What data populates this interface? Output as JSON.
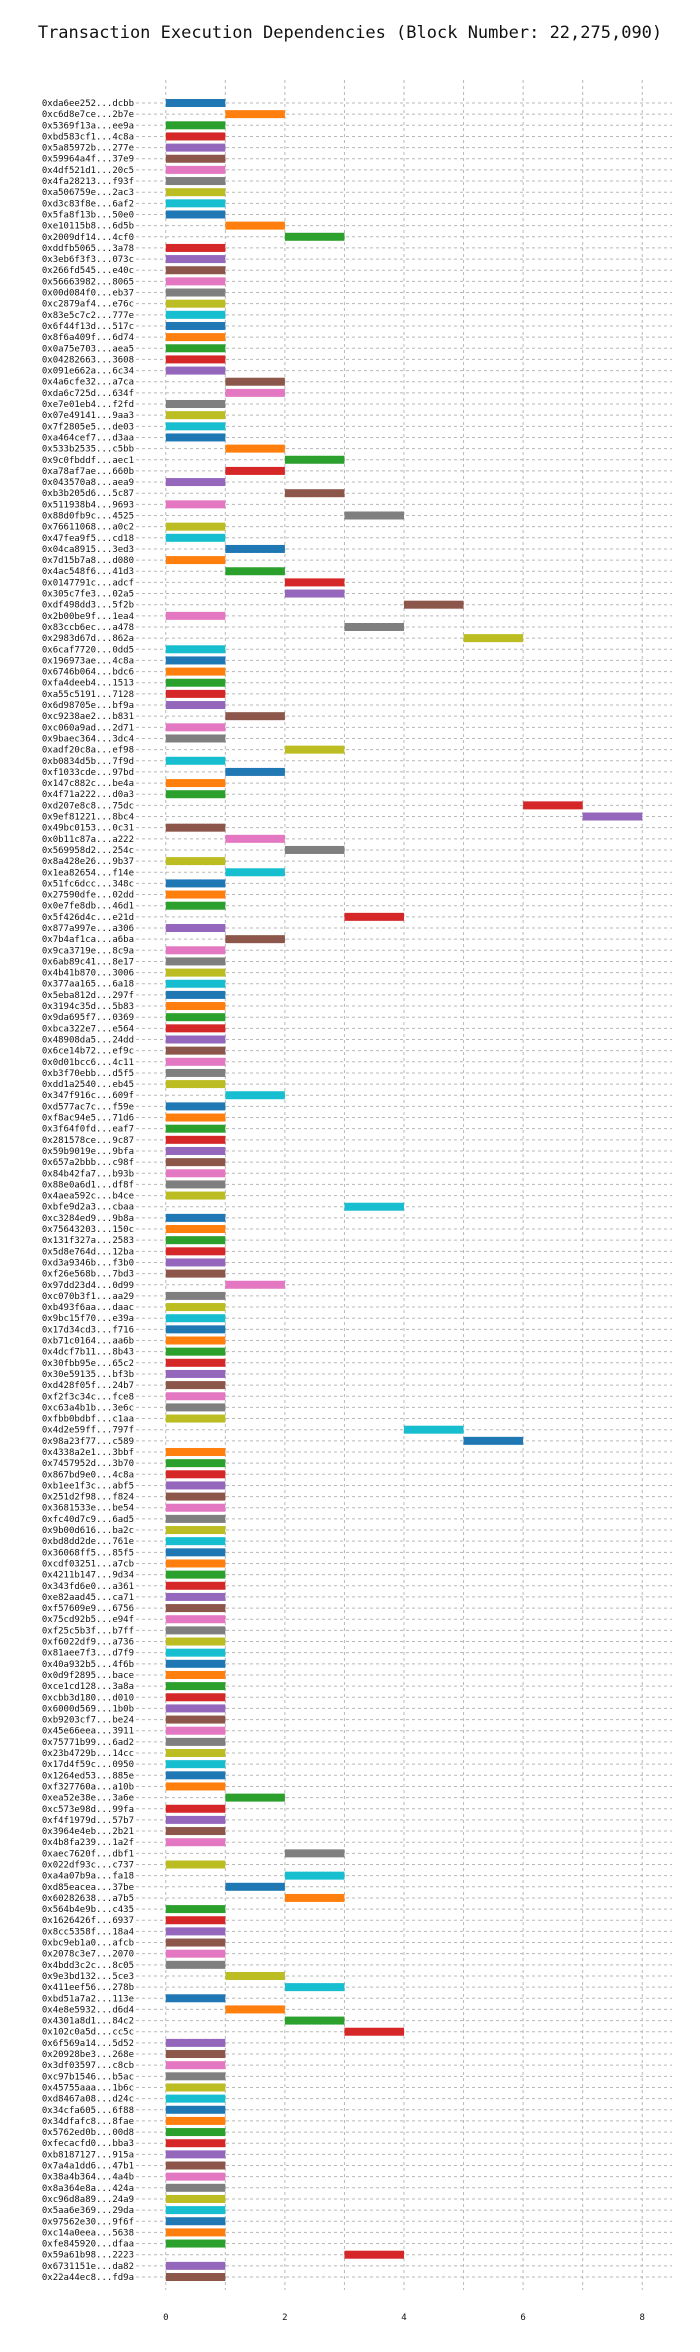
{
  "chart_data": {
    "type": "bar",
    "orientation": "horizontal",
    "title": "Transaction Execution Dependencies (Block Number: 22,275,090)",
    "xlabel": "",
    "ylabel": "",
    "xlim": [
      -0.5,
      8.5
    ],
    "x_ticks": [
      "0",
      "2",
      "4",
      "6",
      "8"
    ],
    "grid": true,
    "colors": [
      "#1f77b4",
      "#ff7f0e",
      "#2ca02c",
      "#d62728",
      "#9467bd",
      "#8c564b",
      "#e377c2",
      "#7f7f7f",
      "#bcbd22",
      "#17becf"
    ],
    "rows": [
      {
        "tx": "0xda6ee252...dcbb",
        "start": 0,
        "end": 1
      },
      {
        "tx": "0xc6d8e7ce...2b7e",
        "start": 1,
        "end": 2
      },
      {
        "tx": "0x5369f13a...ee9a",
        "start": 0,
        "end": 1
      },
      {
        "tx": "0xbd583cf1...4c8a",
        "start": 0,
        "end": 1
      },
      {
        "tx": "0x5a85972b...277e",
        "start": 0,
        "end": 1
      },
      {
        "tx": "0x59964a4f...37e9",
        "start": 0,
        "end": 1
      },
      {
        "tx": "0x4df521d1...20c5",
        "start": 0,
        "end": 1
      },
      {
        "tx": "0x4fa28213...f93f",
        "start": 0,
        "end": 1
      },
      {
        "tx": "0xa506759e...2ac3",
        "start": 0,
        "end": 1
      },
      {
        "tx": "0xd3c83f8e...6af2",
        "start": 0,
        "end": 1
      },
      {
        "tx": "0x5fa8f13b...50e0",
        "start": 0,
        "end": 1
      },
      {
        "tx": "0xe10115b8...6d5b",
        "start": 1,
        "end": 2
      },
      {
        "tx": "0x2009df14...4cf0",
        "start": 2,
        "end": 3
      },
      {
        "tx": "0xddfb5065...3a78",
        "start": 0,
        "end": 1
      },
      {
        "tx": "0x3eb6f3f3...073c",
        "start": 0,
        "end": 1
      },
      {
        "tx": "0x266fd545...e40c",
        "start": 0,
        "end": 1
      },
      {
        "tx": "0x56663982...8065",
        "start": 0,
        "end": 1
      },
      {
        "tx": "0x00d084f0...eb37",
        "start": 0,
        "end": 1
      },
      {
        "tx": "0xc2879af4...e76c",
        "start": 0,
        "end": 1
      },
      {
        "tx": "0x83e5c7c2...777e",
        "start": 0,
        "end": 1
      },
      {
        "tx": "0x6f44f13d...517c",
        "start": 0,
        "end": 1
      },
      {
        "tx": "0x8f6a409f...6d74",
        "start": 0,
        "end": 1
      },
      {
        "tx": "0x0a75e703...aea5",
        "start": 0,
        "end": 1
      },
      {
        "tx": "0x04282663...3608",
        "start": 0,
        "end": 1
      },
      {
        "tx": "0x091e662a...6c34",
        "start": 0,
        "end": 1
      },
      {
        "tx": "0x4a6cfe32...a7ca",
        "start": 1,
        "end": 2
      },
      {
        "tx": "0xda6c725d...634f",
        "start": 1,
        "end": 2
      },
      {
        "tx": "0xe7e01eb4...f2fd",
        "start": 0,
        "end": 1
      },
      {
        "tx": "0x07e49141...9aa3",
        "start": 0,
        "end": 1
      },
      {
        "tx": "0x7f2805e5...de03",
        "start": 0,
        "end": 1
      },
      {
        "tx": "0xa464cef7...d3aa",
        "start": 0,
        "end": 1
      },
      {
        "tx": "0x533b2535...c5bb",
        "start": 1,
        "end": 2
      },
      {
        "tx": "0x9c0fbddf...aec1",
        "start": 2,
        "end": 3
      },
      {
        "tx": "0xa78af7ae...660b",
        "start": 1,
        "end": 2
      },
      {
        "tx": "0x043570a8...aea9",
        "start": 0,
        "end": 1
      },
      {
        "tx": "0xb3b205d6...5c87",
        "start": 2,
        "end": 3
      },
      {
        "tx": "0x511938b4...9693",
        "start": 0,
        "end": 1
      },
      {
        "tx": "0x88d0fb9c...4525",
        "start": 3,
        "end": 4
      },
      {
        "tx": "0x76611068...a0c2",
        "start": 0,
        "end": 1
      },
      {
        "tx": "0x47fea9f5...cd18",
        "start": 0,
        "end": 1
      },
      {
        "tx": "0x04ca8915...3ed3",
        "start": 1,
        "end": 2
      },
      {
        "tx": "0x7d15b7a8...d080",
        "start": 0,
        "end": 1
      },
      {
        "tx": "0x4ac548f6...41d3",
        "start": 1,
        "end": 2
      },
      {
        "tx": "0x0147791c...adcf",
        "start": 2,
        "end": 3
      },
      {
        "tx": "0x305c7fe3...02a5",
        "start": 2,
        "end": 3
      },
      {
        "tx": "0xdf498dd3...5f2b",
        "start": 4,
        "end": 5
      },
      {
        "tx": "0x2b00be9f...1ea4",
        "start": 0,
        "end": 1
      },
      {
        "tx": "0x83ccb6ec...a478",
        "start": 3,
        "end": 4
      },
      {
        "tx": "0x2983d67d...862a",
        "start": 5,
        "end": 6
      },
      {
        "tx": "0x6caf7720...0dd5",
        "start": 0,
        "end": 1
      },
      {
        "tx": "0x196973ae...4c8a",
        "start": 0,
        "end": 1
      },
      {
        "tx": "0x6746b064...bdc6",
        "start": 0,
        "end": 1
      },
      {
        "tx": "0xfa4deeb4...1513",
        "start": 0,
        "end": 1
      },
      {
        "tx": "0xa55c5191...7128",
        "start": 0,
        "end": 1
      },
      {
        "tx": "0x6d98705e...bf9a",
        "start": 0,
        "end": 1
      },
      {
        "tx": "0xc9238ae2...b831",
        "start": 1,
        "end": 2
      },
      {
        "tx": "0xc060a9ad...2d71",
        "start": 0,
        "end": 1
      },
      {
        "tx": "0x9baec364...3dc4",
        "start": 0,
        "end": 1
      },
      {
        "tx": "0xadf20c8a...ef98",
        "start": 2,
        "end": 3
      },
      {
        "tx": "0xb0834d5b...7f9d",
        "start": 0,
        "end": 1
      },
      {
        "tx": "0xf1033cde...97bd",
        "start": 1,
        "end": 2
      },
      {
        "tx": "0x147c882c...be4a",
        "start": 0,
        "end": 1
      },
      {
        "tx": "0x4f71a222...d0a3",
        "start": 0,
        "end": 1
      },
      {
        "tx": "0xd207e8c8...75dc",
        "start": 6,
        "end": 7
      },
      {
        "tx": "0x9ef81221...8bc4",
        "start": 7,
        "end": 8
      },
      {
        "tx": "0x49bc0153...0c31",
        "start": 0,
        "end": 1
      },
      {
        "tx": "0x0b11c87a...a222",
        "start": 1,
        "end": 2
      },
      {
        "tx": "0x569958d2...254c",
        "start": 2,
        "end": 3
      },
      {
        "tx": "0x8a428e26...9b37",
        "start": 0,
        "end": 1
      },
      {
        "tx": "0x1ea82654...f14e",
        "start": 1,
        "end": 2
      },
      {
        "tx": "0x51fc6dcc...348c",
        "start": 0,
        "end": 1
      },
      {
        "tx": "0x27590dfe...02dd",
        "start": 0,
        "end": 1
      },
      {
        "tx": "0x0e7fe8db...46d1",
        "start": 0,
        "end": 1
      },
      {
        "tx": "0x5f426d4c...e21d",
        "start": 3,
        "end": 4
      },
      {
        "tx": "0x877a997e...a306",
        "start": 0,
        "end": 1
      },
      {
        "tx": "0x7b4af1ca...a6ba",
        "start": 1,
        "end": 2
      },
      {
        "tx": "0x9ca3719e...8c9a",
        "start": 0,
        "end": 1
      },
      {
        "tx": "0x6ab89c41...8e17",
        "start": 0,
        "end": 1
      },
      {
        "tx": "0x4b41b870...3006",
        "start": 0,
        "end": 1
      },
      {
        "tx": "0x377aa165...6a18",
        "start": 0,
        "end": 1
      },
      {
        "tx": "0x5eba812d...297f",
        "start": 0,
        "end": 1
      },
      {
        "tx": "0x3194c35d...5b83",
        "start": 0,
        "end": 1
      },
      {
        "tx": "0x9da695f7...0369",
        "start": 0,
        "end": 1
      },
      {
        "tx": "0xbca322e7...e564",
        "start": 0,
        "end": 1
      },
      {
        "tx": "0x48908da5...24dd",
        "start": 0,
        "end": 1
      },
      {
        "tx": "0x6ce14b72...ef9c",
        "start": 0,
        "end": 1
      },
      {
        "tx": "0x0d01bcc6...4c11",
        "start": 0,
        "end": 1
      },
      {
        "tx": "0xb3f70ebb...d5f5",
        "start": 0,
        "end": 1
      },
      {
        "tx": "0xdd1a2540...eb45",
        "start": 0,
        "end": 1
      },
      {
        "tx": "0x347f916c...609f",
        "start": 1,
        "end": 2
      },
      {
        "tx": "0xd577ac7c...f59e",
        "start": 0,
        "end": 1
      },
      {
        "tx": "0xf8ac94e5...71d6",
        "start": 0,
        "end": 1
      },
      {
        "tx": "0x3f64f0fd...eaf7",
        "start": 0,
        "end": 1
      },
      {
        "tx": "0x281578ce...9c87",
        "start": 0,
        "end": 1
      },
      {
        "tx": "0x59b9019e...9bfa",
        "start": 0,
        "end": 1
      },
      {
        "tx": "0x657a2bbb...c98f",
        "start": 0,
        "end": 1
      },
      {
        "tx": "0x84b42fa7...b93b",
        "start": 0,
        "end": 1
      },
      {
        "tx": "0x88e0a6d1...df8f",
        "start": 0,
        "end": 1
      },
      {
        "tx": "0x4aea592c...b4ce",
        "start": 0,
        "end": 1
      },
      {
        "tx": "0xbfe9d2a3...cbaa",
        "start": 3,
        "end": 4
      },
      {
        "tx": "0xc3284ed9...9b8a",
        "start": 0,
        "end": 1
      },
      {
        "tx": "0x75643203...150c",
        "start": 0,
        "end": 1
      },
      {
        "tx": "0x131f327a...2583",
        "start": 0,
        "end": 1
      },
      {
        "tx": "0x5d8e764d...12ba",
        "start": 0,
        "end": 1
      },
      {
        "tx": "0xd3a9346b...f3b0",
        "start": 0,
        "end": 1
      },
      {
        "tx": "0xf26e568b...7bd3",
        "start": 0,
        "end": 1
      },
      {
        "tx": "0x97dd23d4...0d99",
        "start": 1,
        "end": 2
      },
      {
        "tx": "0xc070b3f1...aa29",
        "start": 0,
        "end": 1
      },
      {
        "tx": "0xb493f6aa...daac",
        "start": 0,
        "end": 1
      },
      {
        "tx": "0x9bc15f70...e39a",
        "start": 0,
        "end": 1
      },
      {
        "tx": "0x17d34cd3...f716",
        "start": 0,
        "end": 1
      },
      {
        "tx": "0xb71c0164...aa6b",
        "start": 0,
        "end": 1
      },
      {
        "tx": "0x4dcf7b11...8b43",
        "start": 0,
        "end": 1
      },
      {
        "tx": "0x30fbb95e...65c2",
        "start": 0,
        "end": 1
      },
      {
        "tx": "0x30e59135...bf3b",
        "start": 0,
        "end": 1
      },
      {
        "tx": "0xd428f05f...24b7",
        "start": 0,
        "end": 1
      },
      {
        "tx": "0xf2f3c34c...fce8",
        "start": 0,
        "end": 1
      },
      {
        "tx": "0xc63a4b1b...3e6c",
        "start": 0,
        "end": 1
      },
      {
        "tx": "0xfbb0bdbf...c1aa",
        "start": 0,
        "end": 1
      },
      {
        "tx": "0x4d2e59ff...797f",
        "start": 4,
        "end": 5
      },
      {
        "tx": "0x98a23f77...c589",
        "start": 5,
        "end": 6
      },
      {
        "tx": "0x4338a2e1...3bbf",
        "start": 0,
        "end": 1
      },
      {
        "tx": "0x7457952d...3b70",
        "start": 0,
        "end": 1
      },
      {
        "tx": "0x867bd9e0...4c8a",
        "start": 0,
        "end": 1
      },
      {
        "tx": "0xb1ee1f3c...abf5",
        "start": 0,
        "end": 1
      },
      {
        "tx": "0x251d2f98...f824",
        "start": 0,
        "end": 1
      },
      {
        "tx": "0x3681533e...be54",
        "start": 0,
        "end": 1
      },
      {
        "tx": "0xfc40d7c9...6ad5",
        "start": 0,
        "end": 1
      },
      {
        "tx": "0x9b00d616...ba2c",
        "start": 0,
        "end": 1
      },
      {
        "tx": "0xbd8dd2de...761e",
        "start": 0,
        "end": 1
      },
      {
        "tx": "0x36068ff5...85f5",
        "start": 0,
        "end": 1
      },
      {
        "tx": "0xcdf03251...a7cb",
        "start": 0,
        "end": 1
      },
      {
        "tx": "0x4211b147...9d34",
        "start": 0,
        "end": 1
      },
      {
        "tx": "0x343fd6e0...a361",
        "start": 0,
        "end": 1
      },
      {
        "tx": "0xe82aad45...ca71",
        "start": 0,
        "end": 1
      },
      {
        "tx": "0xf57609e9...6756",
        "start": 0,
        "end": 1
      },
      {
        "tx": "0x75cd92b5...e94f",
        "start": 0,
        "end": 1
      },
      {
        "tx": "0xf25c5b3f...b7ff",
        "start": 0,
        "end": 1
      },
      {
        "tx": "0xf6022df9...a736",
        "start": 0,
        "end": 1
      },
      {
        "tx": "0x81aee7f3...d7f9",
        "start": 0,
        "end": 1
      },
      {
        "tx": "0x40a932b5...4f6b",
        "start": 0,
        "end": 1
      },
      {
        "tx": "0x0d9f2895...bace",
        "start": 0,
        "end": 1
      },
      {
        "tx": "0xce1cd128...3a8a",
        "start": 0,
        "end": 1
      },
      {
        "tx": "0xcbb3d180...d010",
        "start": 0,
        "end": 1
      },
      {
        "tx": "0x6000d569...1b0b",
        "start": 0,
        "end": 1
      },
      {
        "tx": "0xb9203cf7...be24",
        "start": 0,
        "end": 1
      },
      {
        "tx": "0x45e66eea...3911",
        "start": 0,
        "end": 1
      },
      {
        "tx": "0x75771b99...6ad2",
        "start": 0,
        "end": 1
      },
      {
        "tx": "0x23b4729b...14cc",
        "start": 0,
        "end": 1
      },
      {
        "tx": "0x17d4f59c...0950",
        "start": 0,
        "end": 1
      },
      {
        "tx": "0x1264ed53...885e",
        "start": 0,
        "end": 1
      },
      {
        "tx": "0xf327760a...a10b",
        "start": 0,
        "end": 1
      },
      {
        "tx": "0xea52e38e...3a6e",
        "start": 1,
        "end": 2
      },
      {
        "tx": "0xc573e98d...99fa",
        "start": 0,
        "end": 1
      },
      {
        "tx": "0xf4f1979d...57b7",
        "start": 0,
        "end": 1
      },
      {
        "tx": "0x3964e4eb...2b21",
        "start": 0,
        "end": 1
      },
      {
        "tx": "0x4b8fa239...1a2f",
        "start": 0,
        "end": 1
      },
      {
        "tx": "0xaec7620f...dbf1",
        "start": 2,
        "end": 3
      },
      {
        "tx": "0x022df93c...c737",
        "start": 0,
        "end": 1
      },
      {
        "tx": "0xa4a07b9a...fa18",
        "start": 2,
        "end": 3
      },
      {
        "tx": "0xd85eacea...37be",
        "start": 1,
        "end": 2
      },
      {
        "tx": "0x60282638...a7b5",
        "start": 2,
        "end": 3
      },
      {
        "tx": "0x564b4e9b...c435",
        "start": 0,
        "end": 1
      },
      {
        "tx": "0x1626426f...6937",
        "start": 0,
        "end": 1
      },
      {
        "tx": "0x8cc5358f...18a4",
        "start": 0,
        "end": 1
      },
      {
        "tx": "0xbc9eb1a0...afcb",
        "start": 0,
        "end": 1
      },
      {
        "tx": "0x2078c3e7...2070",
        "start": 0,
        "end": 1
      },
      {
        "tx": "0x4bdd3c2c...8c05",
        "start": 0,
        "end": 1
      },
      {
        "tx": "0x9e3bd132...5ce3",
        "start": 1,
        "end": 2
      },
      {
        "tx": "0x411eef56...278b",
        "start": 2,
        "end": 3
      },
      {
        "tx": "0xbd51a7a2...113e",
        "start": 0,
        "end": 1
      },
      {
        "tx": "0x4e8e5932...d6d4",
        "start": 1,
        "end": 2
      },
      {
        "tx": "0x4301a8d1...84c2",
        "start": 2,
        "end": 3
      },
      {
        "tx": "0x102c0a5d...cc5c",
        "start": 3,
        "end": 4
      },
      {
        "tx": "0x6f569a14...5d52",
        "start": 0,
        "end": 1
      },
      {
        "tx": "0x20928be3...268e",
        "start": 0,
        "end": 1
      },
      {
        "tx": "0x3df03597...c8cb",
        "start": 0,
        "end": 1
      },
      {
        "tx": "0xc97b1546...b5ac",
        "start": 0,
        "end": 1
      },
      {
        "tx": "0x45755aaa...1b6c",
        "start": 0,
        "end": 1
      },
      {
        "tx": "0xd8467a08...d24c",
        "start": 0,
        "end": 1
      },
      {
        "tx": "0x34cfa605...6f88",
        "start": 0,
        "end": 1
      },
      {
        "tx": "0x34dfafc8...8fae",
        "start": 0,
        "end": 1
      },
      {
        "tx": "0x5762ed0b...00d8",
        "start": 0,
        "end": 1
      },
      {
        "tx": "0xfecacfd0...bba3",
        "start": 0,
        "end": 1
      },
      {
        "tx": "0xb8187127...915a",
        "start": 0,
        "end": 1
      },
      {
        "tx": "0x7a4a1dd6...47b1",
        "start": 0,
        "end": 1
      },
      {
        "tx": "0x38a4b364...4a4b",
        "start": 0,
        "end": 1
      },
      {
        "tx": "0x8a364e8a...424a",
        "start": 0,
        "end": 1
      },
      {
        "tx": "0xc96d8a89...24a9",
        "start": 0,
        "end": 1
      },
      {
        "tx": "0x5aa6e369...29da",
        "start": 0,
        "end": 1
      },
      {
        "tx": "0x97562e30...9f6f",
        "start": 0,
        "end": 1
      },
      {
        "tx": "0xc14a0eea...5638",
        "start": 0,
        "end": 1
      },
      {
        "tx": "0xfe845920...dfaa",
        "start": 0,
        "end": 1
      },
      {
        "tx": "0x59a61b98...2223",
        "start": 3,
        "end": 4
      },
      {
        "tx": "0x6731151e...da82",
        "start": 0,
        "end": 1
      },
      {
        "tx": "0x22a44ec8...fd9a",
        "start": 0,
        "end": 1
      }
    ]
  }
}
